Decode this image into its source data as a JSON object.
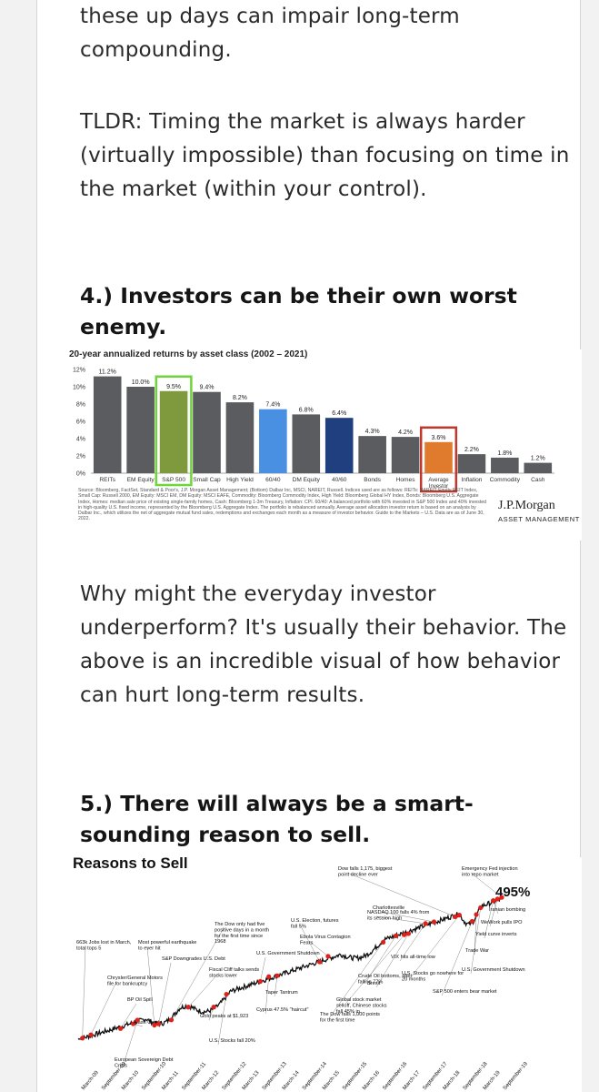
{
  "article": {
    "p1": "these up days can impair long-term compounding.",
    "p2": "TLDR: Timing the market is always harder (virtually impossible) than focusing on time in the market (within your control).",
    "h4": "4.) Investors can be their own worst enemy.",
    "p3": "Why might the everyday investor underperform? It's usually their behavior. The above is an incredible visual of how behavior can hurt long-term results.",
    "h5": "5.) There will always be a smart-sounding reason to sell."
  },
  "jpm_figure": {
    "source_note": "Source: Bloomberg, FactSet, Standard & Poor's, J.P. Morgan Asset Management; (Bottom) Dalbar Inc, MSCI, NAREIT, Russell. Indices used are as follows: REITs: NAREIT Equity REIT Index, Small Cap: Russell 2000, EM Equity: MSCI EM, DM Equity: MSCI EAFE, Commodity: Bloomberg Commodity Index, High Yield: Bloomberg Global HY Index, Bonds: Bloomberg U.S. Aggregate Index, Homes: median sale price of existing single-family homes, Cash: Bloomberg 1-3m Treasury, Inflation: CPI. 60/40: A balanced portfolio with 60% invested in S&P 500 Index and 40% invested in high-quality U.S. fixed income, represented by the Bloomberg U.S. Aggregate Index. The portfolio is rebalanced annually. Average asset allocation investor return is based on an analysis by Dalbar Inc., which utilizes the net of aggregate mutual fund sales, redemptions and exchanges each month as a measure of investor behavior. Guide to the Markets – U.S. Data are as of June 30, 2022.",
    "logo": "J.P.Morgan",
    "logo_sub": "ASSET MANAGEMENT"
  },
  "chart_data": [
    {
      "type": "bar",
      "title": "20-year annualized returns by asset class (2002 – 2021)",
      "categories": [
        "REITs",
        "EM Equity",
        "S&P 500",
        "Small Cap",
        "High Yield",
        "60/40",
        "DM Equity",
        "40/60",
        "Bonds",
        "Homes",
        "Average Investor",
        "Inflation",
        "Commodity",
        "Cash"
      ],
      "values": [
        11.2,
        10.0,
        9.5,
        9.4,
        8.2,
        7.4,
        6.8,
        6.4,
        4.3,
        4.2,
        3.6,
        2.2,
        1.8,
        1.2
      ],
      "value_labels": [
        "11.2%",
        "10.0%",
        "9.5%",
        "9.4%",
        "8.2%",
        "7.4%",
        "6.8%",
        "6.4%",
        "4.3%",
        "4.2%",
        "3.6%",
        "2.2%",
        "1.8%",
        "1.2%"
      ],
      "bar_colors": [
        "#5a5c5f",
        "#5a5c5f",
        "#7f9a3c",
        "#5a5c5f",
        "#5a5c5f",
        "#4a90e2",
        "#5a5c5f",
        "#1f3f7f",
        "#5a5c5f",
        "#5a5c5f",
        "#e07b2e",
        "#5a5c5f",
        "#5a5c5f",
        "#5a5c5f"
      ],
      "highlight": {
        "S&P 500": "#6fd63a",
        "Average Investor": "#c2362b"
      },
      "yticks": [
        "0%",
        "2%",
        "4%",
        "6%",
        "8%",
        "10%",
        "12%"
      ],
      "ylim": [
        0,
        12
      ],
      "grid": false
    },
    {
      "type": "line",
      "title": "Reasons to Sell",
      "total_return_label": "495%",
      "line_color": "#111111",
      "event_marker_color": "#e0201b",
      "annotations": [
        "663k Jobs lost in March, total tops 5",
        "Chrysler/General Motors file for bankruptcy",
        "BP Oil Spill",
        "Flash Crash",
        "European Sovereign Debt Crisis",
        "Most powerful earthquake to ever hit",
        "S&P Downgrades U.S. Debt",
        "The Dow only had five positive days in a month for the first time since 1968",
        "Fiscal Cliff talks sends stocks lower",
        "Gold peaks at $1,923",
        "U.S. Stocks fall 20%",
        "U.S. Government Shutdown",
        "Taper Tantrum",
        "Cyprus 47.5% \"haircut\"",
        "U.S. Election, futures fall 5%",
        "Ebola Virus Contagion Fears",
        "The Dow falls 1,000 points for the first time",
        "Global stock market selloff, Chinese stocks fall 45% in",
        "Crude Oil bottoms, after falling 77%",
        "Brexit",
        "NASDAQ 100 falls 4% from its session high",
        "Charlottesville",
        "Dow falls 1,175, biggest point decline ever",
        "VIX hits all-time low",
        "U.S. Stocks go nowhere for 20 months",
        "S&P 500 enters bear market",
        "U.S. Government Shutdown",
        "Trade War",
        "Yield curve inverts",
        "WeWork pulls IPO",
        "Iranian bombing",
        "Emergency Fed injection into repo market"
      ],
      "x_tick_labels": [
        "March-09",
        "September-09",
        "March-10",
        "September-10",
        "March-11",
        "September-11",
        "March-12",
        "September-12",
        "March-13",
        "September-13",
        "March-14",
        "September-14",
        "March-15",
        "September-15",
        "March-16",
        "September-16",
        "March-17",
        "September-17",
        "March-18",
        "September-18",
        "March-19",
        "September-19"
      ]
    }
  ]
}
